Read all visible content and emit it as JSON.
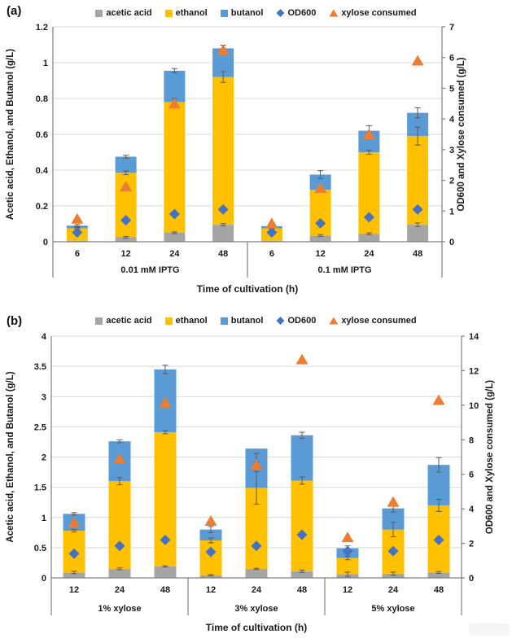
{
  "chart_data": [
    {
      "type": "bar",
      "panel_label": "(a)",
      "legend_items": [
        {
          "label": "acetic acid",
          "marker": "square",
          "color": "#a5a5a5"
        },
        {
          "label": "ethanol",
          "marker": "square",
          "color": "#ffc000"
        },
        {
          "label": "butanol",
          "marker": "square",
          "color": "#5b9bd5"
        },
        {
          "label": "OD600",
          "marker": "diamond",
          "color": "#4472c4"
        },
        {
          "label": "xylose consumed",
          "marker": "triangle",
          "color": "#ed7d31"
        }
      ],
      "left_axis": {
        "label": "Acetic acid, Ethanol, and Butanol (g/L)",
        "min": 0,
        "max": 1.2,
        "step": 0.2,
        "ticks": [
          "0",
          "0.2",
          "0.4",
          "0.6",
          "0.8",
          "1",
          "1.2"
        ]
      },
      "right_axis": {
        "label": "OD600  and Xylose consumed (g/L)",
        "min": 0,
        "max": 7,
        "step": 1,
        "ticks": [
          "0",
          "1",
          "2",
          "3",
          "4",
          "5",
          "6",
          "7"
        ]
      },
      "x_title": "Time of cultivation (h)",
      "groups": [
        {
          "label": "0.01 mM IPTG",
          "ticks": [
            "6",
            "12",
            "24",
            "48"
          ]
        },
        {
          "label": "0.1 mM IPTG",
          "ticks": [
            "6",
            "12",
            "24",
            "48"
          ]
        }
      ],
      "bar_series": [
        {
          "name": "acetic acid",
          "color": "#a5a5a5",
          "values": [
            0.005,
            0.025,
            0.05,
            0.095,
            0.005,
            0.035,
            0.045,
            0.095
          ]
        },
        {
          "name": "ethanol",
          "color": "#ffc000",
          "values": [
            0.07,
            0.36,
            0.73,
            0.825,
            0.07,
            0.255,
            0.455,
            0.495
          ]
        },
        {
          "name": "butanol",
          "color": "#5b9bd5",
          "values": [
            0.015,
            0.09,
            0.175,
            0.16,
            0.012,
            0.085,
            0.12,
            0.13
          ]
        }
      ],
      "stack_totals": [
        0.09,
        0.475,
        0.955,
        1.08,
        0.087,
        0.375,
        0.62,
        0.72
      ],
      "errors": {
        "acetic": [
          0,
          0.005,
          0.005,
          0.006,
          0,
          0.005,
          0.005,
          0.01
        ],
        "ethanol": [
          0.004,
          0.01,
          0.02,
          0.03,
          0.003,
          0.01,
          0.012,
          0.05
        ],
        "total": [
          0.006,
          0.008,
          0.012,
          0.018,
          0.004,
          0.022,
          0.028,
          0.028
        ]
      },
      "scatter_series": [
        {
          "name": "OD600",
          "marker": "diamond",
          "color": "#4472c4",
          "axis": "right",
          "values": [
            0.3,
            0.7,
            0.9,
            1.05,
            0.3,
            0.6,
            0.8,
            1.05
          ]
        },
        {
          "name": "xylose consumed",
          "marker": "triangle",
          "color": "#ed7d31",
          "axis": "right",
          "values": [
            0.75,
            1.8,
            4.5,
            6.25,
            0.6,
            1.75,
            3.5,
            5.9
          ]
        }
      ]
    },
    {
      "type": "bar",
      "panel_label": "(b)",
      "legend_items": [
        {
          "label": "acetic acid",
          "marker": "square",
          "color": "#a5a5a5"
        },
        {
          "label": "ethanol",
          "marker": "square",
          "color": "#ffc000"
        },
        {
          "label": "butanol",
          "marker": "square",
          "color": "#5b9bd5"
        },
        {
          "label": "OD600",
          "marker": "diamond",
          "color": "#4472c4"
        },
        {
          "label": "xylose consumed",
          "marker": "triangle",
          "color": "#ed7d31"
        }
      ],
      "left_axis": {
        "label": "Acetic acid, Ethanol, and Butanol (g/L)",
        "min": 0,
        "max": 4,
        "step": 0.5,
        "ticks": [
          "0",
          "0.5",
          "1",
          "1.5",
          "2",
          "2.5",
          "3",
          "3.5",
          "4"
        ]
      },
      "right_axis": {
        "label": "OD600  and Xylose consumed (g/L)",
        "min": 0,
        "max": 14,
        "step": 2,
        "ticks": [
          "0",
          "2",
          "4",
          "6",
          "8",
          "10",
          "12",
          "14"
        ]
      },
      "x_title": "Time of cultivation (h)",
      "groups": [
        {
          "label": "1% xylose",
          "ticks": [
            "12",
            "24",
            "48"
          ]
        },
        {
          "label": "3% xylose",
          "ticks": [
            "12",
            "24",
            "48"
          ]
        },
        {
          "label": "5% xylose",
          "ticks": [
            "12",
            "24",
            "48"
          ]
        }
      ],
      "bar_series": [
        {
          "name": "acetic acid",
          "color": "#a5a5a5",
          "values": [
            0.09,
            0.15,
            0.19,
            0.045,
            0.15,
            0.11,
            0.06,
            0.07,
            0.09
          ]
        },
        {
          "name": "ethanol",
          "color": "#ffc000",
          "values": [
            0.69,
            1.45,
            2.22,
            0.575,
            1.34,
            1.5,
            0.27,
            0.73,
            1.11
          ]
        },
        {
          "name": "butanol",
          "color": "#5b9bd5",
          "values": [
            0.28,
            0.66,
            1.04,
            0.18,
            0.65,
            0.75,
            0.16,
            0.35,
            0.67
          ]
        }
      ],
      "stack_totals": [
        1.06,
        2.26,
        3.45,
        0.8,
        1.99,
        2.36,
        0.49,
        1.15,
        1.87
      ],
      "errors": {
        "acetic": [
          0.02,
          0.015,
          0.01,
          0.01,
          0.01,
          0.02,
          0.035,
          0.025,
          0.015
        ],
        "ethanol": [
          0.02,
          0.06,
          0.025,
          0.04,
          0.27,
          0.06,
          0.03,
          0.12,
          0.1
        ],
        "total": [
          0.02,
          0.025,
          0.07,
          0.05,
          0.07,
          0.05,
          0.04,
          0.06,
          0.12
        ]
      },
      "scatter_series": [
        {
          "name": "OD600",
          "marker": "diamond",
          "color": "#4472c4",
          "axis": "right",
          "values": [
            1.4,
            1.85,
            2.2,
            1.5,
            1.85,
            2.5,
            1.55,
            1.55,
            2.2
          ]
        },
        {
          "name": "xylose consumed",
          "marker": "triangle",
          "color": "#ed7d31",
          "axis": "right",
          "values": [
            3.2,
            6.9,
            10.15,
            3.3,
            6.55,
            12.65,
            2.35,
            4.4,
            10.3
          ]
        }
      ]
    }
  ]
}
